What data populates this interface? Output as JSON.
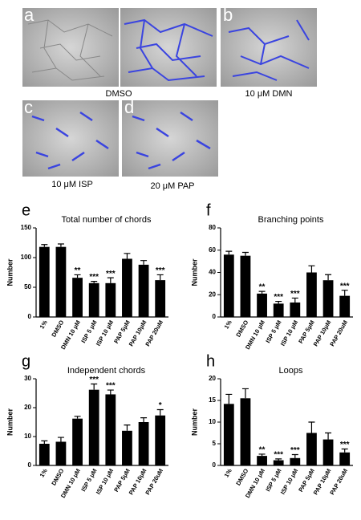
{
  "image_panels": [
    {
      "letter": "a",
      "caption": "DMSO"
    },
    {
      "letter": "b",
      "caption": "10 μM DMN"
    },
    {
      "letter": "c",
      "caption": "10 μM ISP"
    },
    {
      "letter": "d",
      "caption": "20 μM PAP"
    }
  ],
  "chart_data": [
    {
      "type": "bar",
      "panel": "e",
      "title": "Total number of chords",
      "y_label": "Number",
      "color": "#000000",
      "categories": [
        "1%",
        "DMSO",
        "DMN 10 μM",
        "ISP 5 μM",
        "ISP 10 μM",
        "PAP 5μM",
        "PAP 10μM",
        "PAP 20uM"
      ],
      "values": [
        118,
        118,
        66,
        57,
        57,
        98,
        88,
        62
      ],
      "errors": [
        4,
        5,
        5,
        3,
        9,
        9,
        7,
        9
      ],
      "annotations": [
        null,
        null,
        "**",
        "***",
        "***",
        null,
        null,
        "***"
      ],
      "ylim": [
        0,
        150
      ],
      "yticks": [
        0,
        50,
        100,
        150
      ]
    },
    {
      "type": "bar",
      "panel": "f",
      "title": "Branching points",
      "y_label": "Number",
      "color": "#000000",
      "categories": [
        "1%",
        "DMSO",
        "DMN 10 μM",
        "ISP 5 μM",
        "ISP 10 μM",
        "PAP 5μM",
        "PAP 10μM",
        "PAP 20uM"
      ],
      "values": [
        56,
        55,
        21,
        12,
        13,
        40,
        33,
        19
      ],
      "errors": [
        3,
        3,
        2,
        2,
        4,
        6,
        5,
        5
      ],
      "annotations": [
        null,
        null,
        "**",
        "***",
        "***",
        null,
        null,
        "***"
      ],
      "ylim": [
        0,
        80
      ],
      "yticks": [
        0,
        20,
        40,
        60,
        80
      ]
    },
    {
      "type": "bar",
      "panel": "g",
      "title": "Independent chords",
      "y_label": "Number",
      "color": "#000000",
      "categories": [
        "1%",
        "DMSO",
        "DMN 10 μM",
        "ISP 5 μM",
        "ISP 10 μM",
        "PAP 5μM",
        "PAP 10μM",
        "PAP 20uM"
      ],
      "values": [
        7.5,
        8.2,
        16.2,
        26.2,
        24.6,
        12,
        15,
        17.3
      ],
      "errors": [
        1,
        1.5,
        0.8,
        2,
        1.5,
        2,
        1.5,
        2
      ],
      "annotations": [
        null,
        null,
        null,
        "***",
        "***",
        null,
        null,
        "*"
      ],
      "ylim": [
        0,
        30
      ],
      "yticks": [
        0,
        10,
        20,
        30
      ]
    },
    {
      "type": "bar",
      "panel": "h",
      "title": "Loops",
      "y_label": "Number",
      "color": "#000000",
      "categories": [
        "1%",
        "DMSO",
        "DMN 10 μM",
        "ISP 5 μM",
        "ISP 10 μM",
        "PAP 5μM",
        "PAP 10μM",
        "PAP 20uM"
      ],
      "values": [
        14.2,
        15.5,
        2.2,
        1.2,
        1.7,
        7.5,
        6,
        3
      ],
      "errors": [
        2.2,
        2.2,
        0.4,
        0.3,
        0.8,
        2.5,
        1.5,
        0.8
      ],
      "annotations": [
        null,
        null,
        "**",
        "***",
        "***",
        null,
        null,
        "***"
      ],
      "ylim": [
        0,
        20
      ],
      "yticks": [
        0,
        5,
        10,
        15,
        20
      ]
    }
  ]
}
